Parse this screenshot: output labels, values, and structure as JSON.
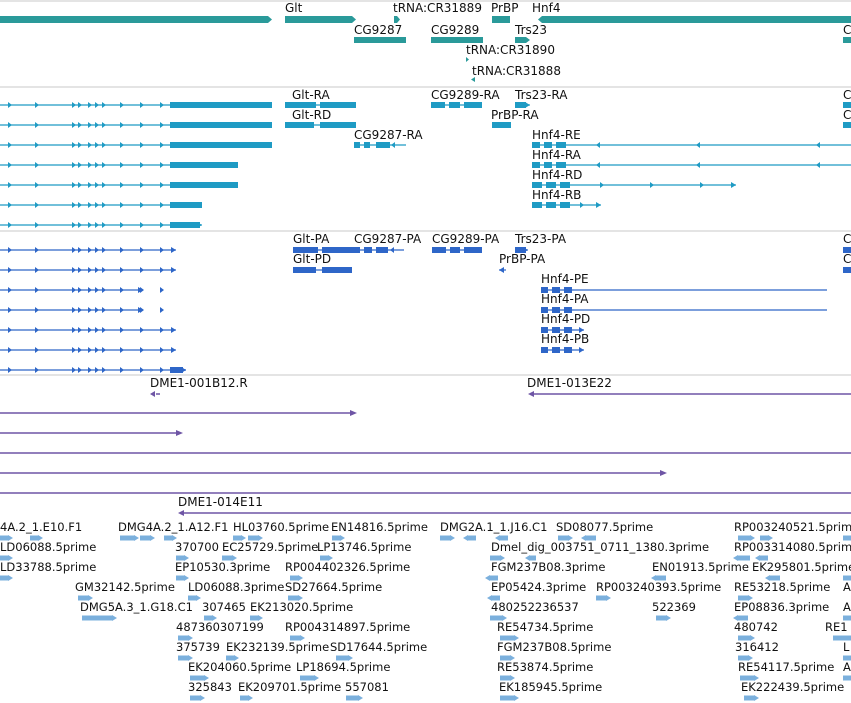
{
  "colors": {
    "gene": "#2a9a9a",
    "mrna": "#1f9bc4",
    "protein": "#2e66c8",
    "clone": "#6e55a5",
    "est": "#7bb0dd",
    "divider": "#c8c8c8"
  },
  "genes": [
    {
      "label": "Glt",
      "label_right": 1
    },
    {
      "label": "tRNA:CR31889"
    },
    {
      "label": "PrBP"
    },
    {
      "label": "Hnf4"
    },
    {
      "label": "CG9287"
    },
    {
      "label": "CG9289"
    },
    {
      "label": "Trs23"
    },
    {
      "label": "tRNA:CR31890"
    },
    {
      "label": "tRNA:CR31888"
    }
  ],
  "transcripts": [
    "Glt-RA",
    "Glt-RD",
    "CG9287-RA",
    "CG9289-RA",
    "Trs23-RA",
    "PrBP-RA",
    "Hnf4-RE",
    "Hnf4-RA",
    "Hnf4-RD",
    "Hnf4-RB"
  ],
  "proteins": [
    "Glt-PA",
    "Glt-PD",
    "CG9287-PA",
    "CG9289-PA",
    "Trs23-PA",
    "PrBP-PA",
    "Hnf4-PE",
    "Hnf4-PA",
    "Hnf4-PD",
    "Hnf4-PB"
  ],
  "clones": [
    "DME1-001B12.R",
    "DME1-013E22",
    "DME1-014E11"
  ],
  "ests": [
    "4A.2_1.E10.F1",
    "DMG4A.2_1.A12.F1",
    "HL03760.5prime",
    "EN14816.5prime",
    "DMG2A.1_1.J16.C1",
    "SD08077.5prime",
    "RP003240521.5prime",
    "LD06088.5prime",
    "370700",
    "EC25729.5prime",
    "LP13746.5prime",
    "Dmel_dig_003751_0711_1380.3prime",
    "RP003314080.5prime",
    "LD33788.5prime",
    "EP10530.3prime",
    "RP004402326.5prime",
    "FGM237B08.3prime",
    "EN01913.5prime",
    "EK295801.5prime",
    "GM32142.5prime",
    "LD06088.3prime",
    "SD27664.5prime",
    "EP05424.3prime",
    "RP003240393.5prime",
    "RE53218.5prime",
    "DMG5A.3_1.G18.C1",
    "307465",
    "EK213020.5prime",
    "480252236537",
    "522369",
    "EP08836.3prime",
    "487360307199",
    "RP004314897.5prime",
    "RE54734.5prime",
    "480742",
    "375739",
    "EK232139.5prime",
    "SD17644.5prime",
    "FGM237B08.5prime",
    "316412",
    "EK204060.5prime",
    "LP18694.5prime",
    "RE53874.5prime",
    "RE54117.5prime",
    "325843",
    "EK209701.5prime",
    "557081",
    "EK185945.5prime",
    "EK222439.5prime"
  ],
  "edge_glyphs": [
    "C",
    "C",
    "C",
    "C",
    "C",
    "A",
    "A",
    "L",
    "A",
    "RE1"
  ]
}
